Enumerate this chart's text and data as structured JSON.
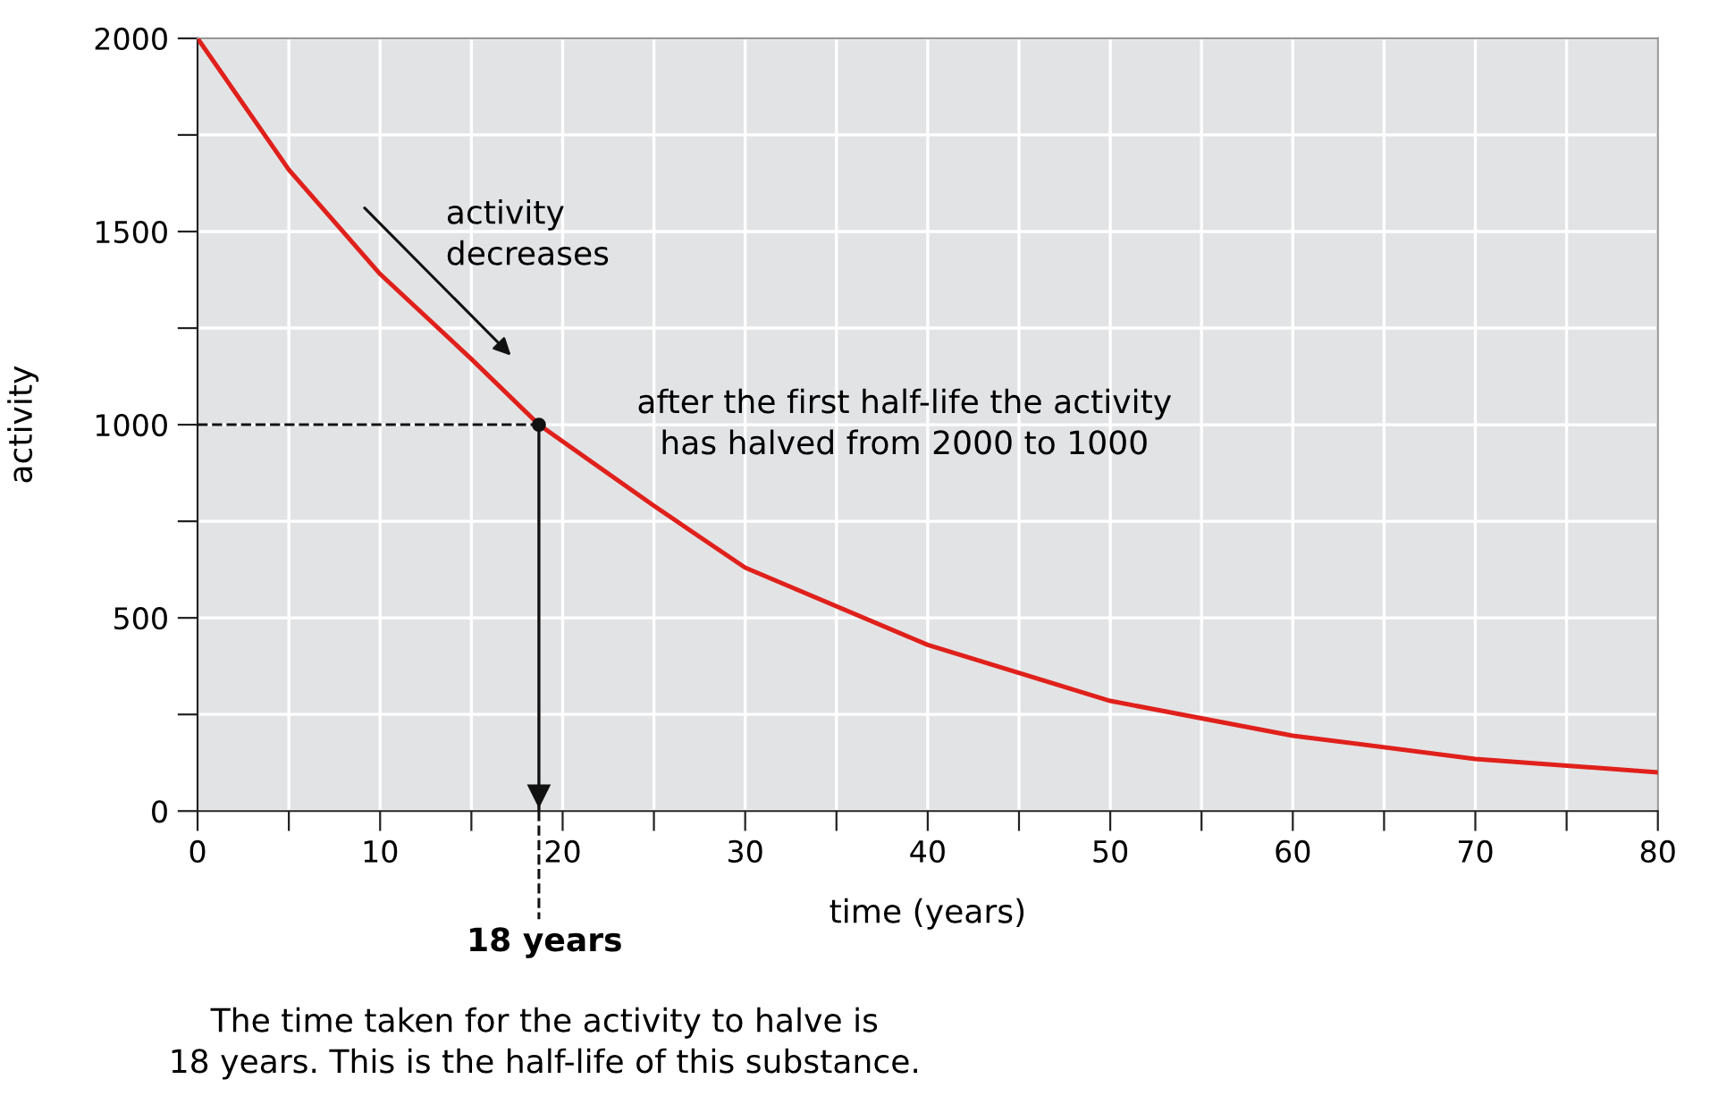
{
  "chart_data": {
    "type": "line",
    "xlabel": "time (years)",
    "ylabel": "activity",
    "series": [
      {
        "color": "#e0201b",
        "x": [
          0,
          5,
          10,
          15,
          18.7,
          25,
          30,
          40,
          50,
          60,
          70,
          80
        ],
        "values": [
          2000,
          1660,
          1390,
          1170,
          1000,
          790,
          630,
          430,
          285,
          195,
          135,
          100
        ]
      },
      {
        "type": "scatter",
        "color": "#111111",
        "marker": "circle",
        "x": [
          18.7
        ],
        "values": [
          1000
        ]
      }
    ],
    "xlim": [
      0,
      80
    ],
    "ylim": [
      0,
      2000
    ],
    "xticks": [
      0,
      {
        "value": 5,
        "label": null
      },
      10,
      {
        "value": 15,
        "label": null
      },
      20,
      {
        "value": 25,
        "label": null
      },
      30,
      {
        "value": 35,
        "label": null
      },
      40,
      {
        "value": 45,
        "label": null
      },
      50,
      {
        "value": 55,
        "label": null
      },
      60,
      {
        "value": 65,
        "label": null
      },
      70,
      {
        "value": 75,
        "label": null
      },
      80
    ],
    "yticks": [
      0,
      {
        "value": 250,
        "label": null
      },
      500,
      {
        "value": 750,
        "label": null
      },
      1000,
      {
        "value": 1250,
        "label": null
      },
      1500,
      {
        "value": 1750,
        "label": null
      },
      2000
    ],
    "grid": true,
    "ref_lines": [
      {
        "axis": "y",
        "value": 1000,
        "color": "#111111",
        "line_style": "dashed"
      },
      {
        "axis": "x",
        "value": 18.7,
        "color": "#111111"
      }
    ],
    "annotations": [
      "activity\ndecreases",
      "after the first half-life the activity\nhas halved from 2000 to 1000",
      "18 years",
      "The time taken for the activity to halve is\n18 years. This is the half-life of this substance."
    ]
  }
}
